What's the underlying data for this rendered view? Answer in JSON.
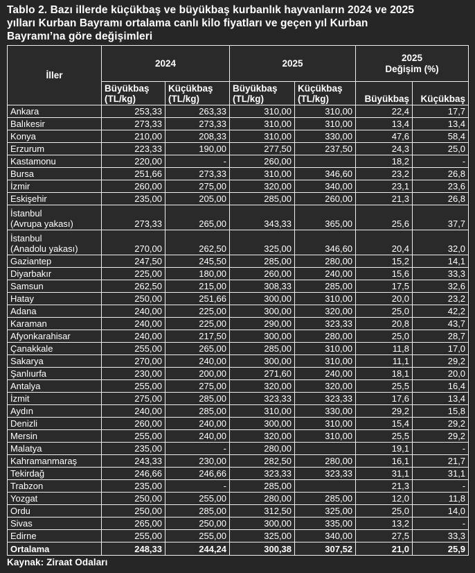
{
  "title": "Tablo 2. Bazı illerde küçükbaş ve büyükbaş kurbanlık hayvanların 2024 ve 2025\nyılları Kurban Bayramı ortalama canlı kilo fiyatları ve geçen yıl Kurban\nBayramı’na göre değişimleri",
  "source": "Kaynak: Ziraat Odaları",
  "colors": {
    "page_background": "#262626",
    "cell_background": "#2a2a2a",
    "border": "#f0f0f0",
    "text": "#ffffff"
  },
  "table": {
    "header": {
      "iller": "İller",
      "y2024": "2024",
      "y2025": "2025",
      "change": "2025\nDeğişim (%)"
    },
    "sub_headers": [
      "Büyükbaş\n(TL/kg)",
      "Küçükbaş\n(TL/kg)",
      "Büyükbaş\n(TL/kg)",
      "Küçükbaş\n(TL/kg)",
      "Büyükbaş",
      "Küçükbaş"
    ],
    "rows": [
      {
        "il": "Ankara",
        "values": [
          "253,33",
          "263,33",
          "310,00",
          "310,00",
          "22,4",
          "17,7"
        ]
      },
      {
        "il": "Balıkesir",
        "values": [
          "273,33",
          "273,33",
          "310,00",
          "310,00",
          "13,4",
          "13,4"
        ]
      },
      {
        "il": "Konya",
        "values": [
          "210,00",
          "208,33",
          "310,00",
          "330,00",
          "47,6",
          "58,4"
        ]
      },
      {
        "il": "Erzurum",
        "values": [
          "223,33",
          "190,00",
          "277,50",
          "237,50",
          "24,3",
          "25,0"
        ]
      },
      {
        "il": "Kastamonu",
        "values": [
          "220,00",
          "-",
          "260,00",
          "",
          "18,2",
          "-"
        ]
      },
      {
        "il": "Bursa",
        "values": [
          "251,66",
          "273,33",
          "310,00",
          "346,60",
          "23,2",
          "26,8"
        ]
      },
      {
        "il": "İzmir",
        "values": [
          "260,00",
          "275,00",
          "320,00",
          "340,00",
          "23,1",
          "23,6"
        ]
      },
      {
        "il": "Eskişehir",
        "values": [
          "235,00",
          "205,00",
          "285,00",
          "260,00",
          "21,3",
          "26,8"
        ]
      },
      {
        "il": "İstanbul\n(Avrupa yakası)",
        "values": [
          "273,33",
          "265,00",
          "343,33",
          "365,00",
          "25,6",
          "37,7"
        ]
      },
      {
        "il": "İstanbul\n(Anadolu yakası)",
        "values": [
          "270,00",
          "262,50",
          "325,00",
          "346,60",
          "20,4",
          "32,0"
        ]
      },
      {
        "il": "Gaziantep",
        "values": [
          "247,50",
          "245,50",
          "285,00",
          "280,00",
          "15,2",
          "14,1"
        ]
      },
      {
        "il": "Diyarbakır",
        "values": [
          "225,00",
          "180,00",
          "260,00",
          "240,00",
          "15,6",
          "33,3"
        ]
      },
      {
        "il": "Samsun",
        "values": [
          "262,50",
          "215,00",
          "308,33",
          "285,00",
          "17,5",
          "32,6"
        ]
      },
      {
        "il": "Hatay",
        "values": [
          "250,00",
          "251,66",
          "300,00",
          "310,00",
          "20,0",
          "23,2"
        ]
      },
      {
        "il": "Adana",
        "values": [
          "240,00",
          "225,00",
          "300,00",
          "320,00",
          "25,0",
          "42,2"
        ]
      },
      {
        "il": "Karaman",
        "values": [
          "240,00",
          "225,00",
          "290,00",
          "323,33",
          "20,8",
          "43,7"
        ]
      },
      {
        "il": "Afyonkarahisar",
        "values": [
          "240,00",
          "217,50",
          "300,00",
          "280,00",
          "25,0",
          "28,7"
        ]
      },
      {
        "il": "Çanakkale",
        "values": [
          "255,00",
          "265,00",
          "285,00",
          "310,00",
          "11,8",
          "17,0"
        ]
      },
      {
        "il": "Sakarya",
        "values": [
          "270,00",
          "240,00",
          "300,00",
          "310,00",
          "11,1",
          "29,2"
        ]
      },
      {
        "il": "Şanlıurfa",
        "values": [
          "230,00",
          "200,00",
          "271,60",
          "240,00",
          "18,1",
          "20,0"
        ]
      },
      {
        "il": "Antalya",
        "values": [
          "255,00",
          "275,00",
          "320,00",
          "320,00",
          "25,5",
          "16,4"
        ]
      },
      {
        "il": "İzmit",
        "values": [
          "275,00",
          "285,00",
          "323,33",
          "323,33",
          "17,6",
          "13,4"
        ]
      },
      {
        "il": "Aydın",
        "values": [
          "240,00",
          "285,00",
          "310,00",
          "330,00",
          "29,2",
          "15,8"
        ]
      },
      {
        "il": "Denizli",
        "values": [
          "260,00",
          "240,00",
          "300,00",
          "310,00",
          "15,4",
          "29,2"
        ]
      },
      {
        "il": "Mersin",
        "values": [
          "255,00",
          "240,00",
          "320,00",
          "310,00",
          "25,5",
          "29,2"
        ]
      },
      {
        "il": "Malatya",
        "values": [
          "235,00",
          "-",
          "280,00",
          "",
          "19,1",
          "-"
        ]
      },
      {
        "il": "Kahramanmaraş",
        "values": [
          "243,33",
          "230,00",
          "282,50",
          "280,00",
          "16,1",
          "21,7"
        ]
      },
      {
        "il": "Tekirdağ",
        "values": [
          "246,66",
          "246,66",
          "323,33",
          "323,33",
          "31,1",
          "31,1"
        ]
      },
      {
        "il": "Trabzon",
        "values": [
          "235,00",
          "-",
          "285,00",
          "",
          "21,3",
          "-"
        ]
      },
      {
        "il": "Yozgat",
        "values": [
          "250,00",
          "255,00",
          "280,00",
          "285,00",
          "12,0",
          "11,8"
        ]
      },
      {
        "il": "Ordu",
        "values": [
          "250,00",
          "285,00",
          "312,50",
          "325,00",
          "25,0",
          "14,0"
        ]
      },
      {
        "il": "Sivas",
        "values": [
          "265,00",
          "250,00",
          "300,00",
          "335,00",
          "13,2",
          "-"
        ]
      },
      {
        "il": "Edirne",
        "values": [
          "255,00",
          "255,00",
          "325,00",
          "340,00",
          "27,5",
          "33,3"
        ]
      },
      {
        "il": "Ortalama",
        "total": true,
        "values": [
          "248,33",
          "244,24",
          "300,38",
          "307,52",
          "21,0",
          "25,9"
        ]
      }
    ]
  }
}
